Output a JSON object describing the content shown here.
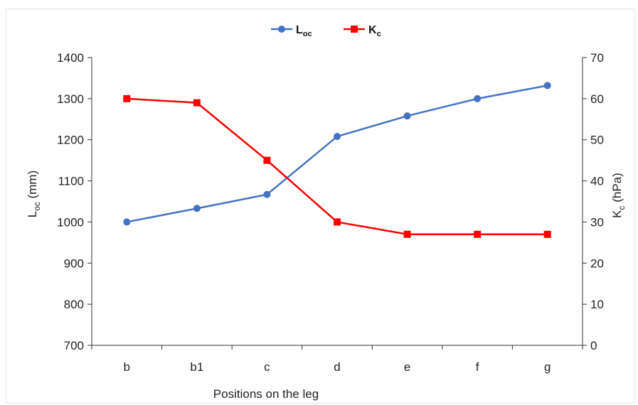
{
  "chart_data": {
    "type": "line",
    "categories": [
      "b",
      "b1",
      "c",
      "d",
      "e",
      "f",
      "g"
    ],
    "title": "",
    "xlabel": "Positions on the leg",
    "ylabel_left": {
      "base": "L",
      "sub": "oc",
      "rest": " (mm)"
    },
    "ylabel_right": {
      "base": "K",
      "sub": "c",
      "rest": " (hPa)"
    },
    "ylim_left": [
      700,
      1400
    ],
    "yticks_left": [
      700,
      800,
      900,
      1000,
      1100,
      1200,
      1300,
      1400
    ],
    "ylim_right": [
      0,
      70
    ],
    "yticks_right": [
      0,
      10,
      20,
      30,
      40,
      50,
      60,
      70
    ],
    "grid": false,
    "legend_position": "top-center",
    "series": [
      {
        "name": {
          "base": "L",
          "sub": "oc"
        },
        "axis": "left",
        "color": "#4472c4",
        "marker": "circle",
        "values": [
          1000,
          1033,
          1067,
          1208,
          1258,
          1300,
          1332
        ]
      },
      {
        "name": {
          "base": "K",
          "sub": "c"
        },
        "axis": "right",
        "color": "#ff0000",
        "marker": "square",
        "values": [
          60,
          59,
          45,
          30,
          27,
          27,
          27
        ]
      }
    ]
  }
}
